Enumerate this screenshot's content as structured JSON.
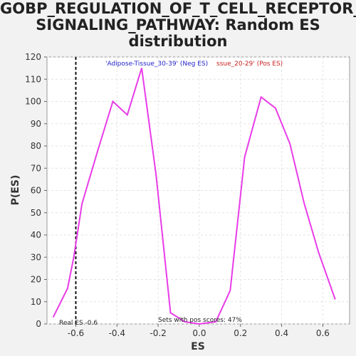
{
  "title_lines": [
    "GOBP_REGULATION_OF_T_CELL_RECEPTOR_",
    "SIGNALING_PATHWAY: Random ES",
    "distribution"
  ],
  "chart_data": {
    "type": "line",
    "title": "GOBP_REGULATION_OF_T_CELL_RECEPTOR_SIGNALING_PATHWAY: Random ES distribution",
    "xlabel": "ES",
    "ylabel": "P(ES)",
    "xlim": [
      -0.74,
      0.73
    ],
    "ylim": [
      0,
      120
    ],
    "xticks": [
      -0.6,
      -0.4,
      -0.2,
      0.0,
      0.2,
      0.4,
      0.6
    ],
    "xtick_labels": [
      "-0.6",
      "-0.4",
      "-0.2",
      "0.0",
      "0.2",
      "0.4",
      "0.6"
    ],
    "yticks": [
      0,
      10,
      20,
      30,
      40,
      50,
      60,
      70,
      80,
      90,
      100,
      110,
      120
    ],
    "grid": true,
    "series": [
      {
        "color": "#e83ce8",
        "x": [
          -0.71,
          -0.64,
          -0.61,
          -0.57,
          -0.49,
          -0.42,
          -0.35,
          -0.28,
          -0.21,
          -0.14,
          -0.07,
          0.0,
          0.08,
          0.15,
          0.22,
          0.3,
          0.37,
          0.44,
          0.51,
          0.58,
          0.66
        ],
        "y": [
          3,
          16,
          30,
          54,
          79,
          100,
          94,
          115,
          67,
          5,
          1,
          0,
          1,
          15,
          75,
          102,
          97,
          81,
          54,
          32,
          11
        ]
      }
    ],
    "vline": {
      "x": -0.6,
      "label": "Real ES -0.6"
    },
    "legend": {
      "neg_label": "'Adipose-Tissue_30-39' (Neg ES)",
      "pos_label": "ssue_20-29' (Pos ES)",
      "neg_color": "#2222cc",
      "pos_color": "#cc2222"
    },
    "annotation": "Sets with pos scores: 47%"
  }
}
